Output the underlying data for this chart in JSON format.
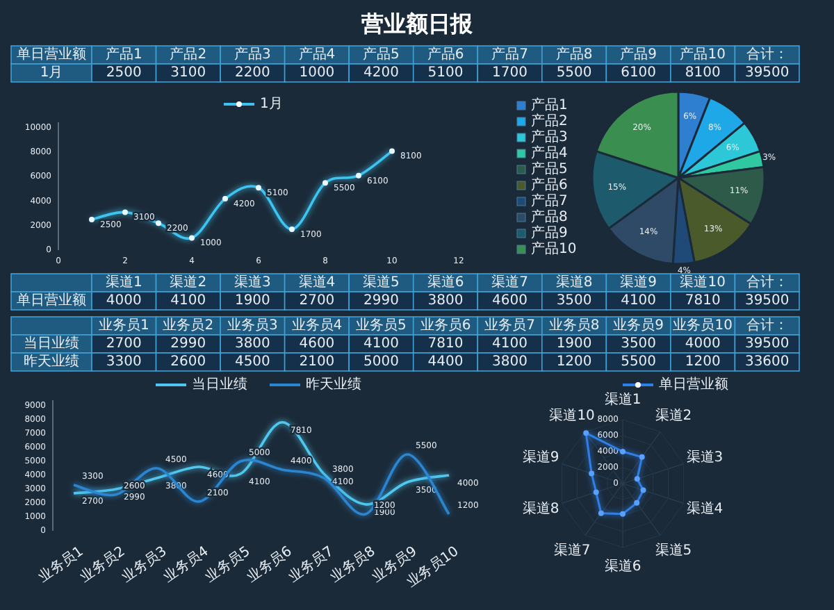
{
  "chart_data": [
    {
      "type": "other",
      "title": "营业额日报",
      "annotations": [
        "单日营业额",
        "合计："
      ],
      "data_labels": true,
      "categories": [
        "产品1",
        "产品2",
        "产品3",
        "产品4",
        "产品5",
        "产品6",
        "产品7",
        "产品8",
        "产品9",
        "产品10"
      ],
      "series": [
        {
          "name": "1月",
          "values": [
            2500,
            3100,
            2200,
            1000,
            4200,
            5100,
            1700,
            5500,
            6100,
            8100
          ]
        }
      ],
      "totals": [
        "39500"
      ]
    },
    {
      "type": "line",
      "x": [
        1,
        2,
        3,
        4,
        5,
        6,
        7,
        8,
        9,
        10
      ],
      "xlim": [
        0,
        12
      ],
      "xticks": [
        0,
        2,
        4,
        6,
        8,
        10,
        12
      ],
      "ylim": [
        0,
        10000
      ],
      "yticks": [
        0,
        2000,
        4000,
        6000,
        8000,
        10000
      ],
      "legend": "top",
      "marker": "circle",
      "data_labels": true,
      "series": [
        {
          "name": "1月",
          "color": "#3cc4f0",
          "values": [
            2500,
            3100,
            2200,
            1000,
            4200,
            5100,
            1700,
            5500,
            6100,
            8100
          ]
        }
      ]
    },
    {
      "type": "pie",
      "legend": "left",
      "categories": [
        "产品1",
        "产品2",
        "产品3",
        "产品4",
        "产品5",
        "产品6",
        "产品7",
        "产品8",
        "产品9",
        "产品10"
      ],
      "values": [
        6,
        8,
        6,
        3,
        11,
        13,
        4,
        14,
        15,
        20
      ],
      "value_labels": [
        "6%",
        "8%",
        "6%",
        "3%",
        "11%",
        "13%",
        "4%",
        "14%",
        "15%",
        "20%"
      ],
      "colors": [
        "#2f7fd0",
        "#1fa8e8",
        "#2cc8d8",
        "#30c8a0",
        "#2e5a4a",
        "#4a5a2a",
        "#1f4a78",
        "#2e4a66",
        "#1d5a6c",
        "#3a8f50"
      ]
    },
    {
      "type": "other",
      "annotations": [
        null,
        "合计："
      ],
      "data_labels": true,
      "categories": [
        "渠道1",
        "渠道2",
        "渠道3",
        "渠道4",
        "渠道5",
        "渠道6",
        "渠道7",
        "渠道8",
        "渠道9",
        "渠道10"
      ],
      "series": [
        {
          "name": "单日营业额",
          "values": [
            4000,
            4100,
            1900,
            2700,
            2990,
            3800,
            4600,
            3500,
            4100,
            7810
          ]
        }
      ],
      "totals": [
        "39500"
      ]
    },
    {
      "type": "other",
      "annotations": [
        null,
        "合计："
      ],
      "data_labels": true,
      "categories": [
        "业务员1",
        "业务员2",
        "业务员3",
        "业务员4",
        "业务员5",
        "业务员6",
        "业务员7",
        "业务员8",
        "业务员9",
        "业务员10"
      ],
      "series": [
        {
          "name": "当日业绩",
          "values": [
            2700,
            2990,
            3800,
            4600,
            4100,
            7810,
            4100,
            1900,
            3500,
            4000
          ]
        },
        {
          "name": "昨天业绩",
          "values": [
            3300,
            2600,
            4500,
            2100,
            5000,
            4400,
            3800,
            1200,
            5500,
            1200
          ]
        }
      ],
      "totals": [
        "39500",
        "33600"
      ]
    },
    {
      "type": "line",
      "categories": [
        "业务员1",
        "业务员2",
        "业务员3",
        "业务员4",
        "业务员5",
        "业务员6",
        "业务员7",
        "业务员8",
        "业务员9",
        "业务员10"
      ],
      "ylim": [
        0,
        9000
      ],
      "yticks": [
        0,
        1000,
        2000,
        3000,
        4000,
        5000,
        6000,
        7000,
        8000,
        9000
      ],
      "legend": "top",
      "data_labels": true,
      "series": [
        {
          "name": "当日业绩",
          "color": "#4fc8f0",
          "values": [
            2700,
            2990,
            3800,
            4600,
            4100,
            7810,
            4100,
            1900,
            3500,
            4000
          ]
        },
        {
          "name": "昨天业绩",
          "color": "#2a86d0",
          "values": [
            3300,
            2600,
            4500,
            2100,
            5000,
            4400,
            3800,
            1200,
            5500,
            1200
          ]
        }
      ]
    },
    {
      "type": "radar",
      "categories": [
        "渠道1",
        "渠道2",
        "渠道3",
        "渠道4",
        "渠道5",
        "渠道6",
        "渠道7",
        "渠道8",
        "渠道9",
        "渠道10"
      ],
      "ylim": [
        0,
        8000
      ],
      "yticks": [
        0,
        2000,
        4000,
        6000,
        8000
      ],
      "legend": "top",
      "marker": "circle",
      "series": [
        {
          "name": "单日营业额",
          "color": "#2f7fe8",
          "values": [
            4000,
            4100,
            1900,
            2700,
            2990,
            3800,
            4600,
            3500,
            4100,
            7810
          ]
        }
      ]
    }
  ]
}
